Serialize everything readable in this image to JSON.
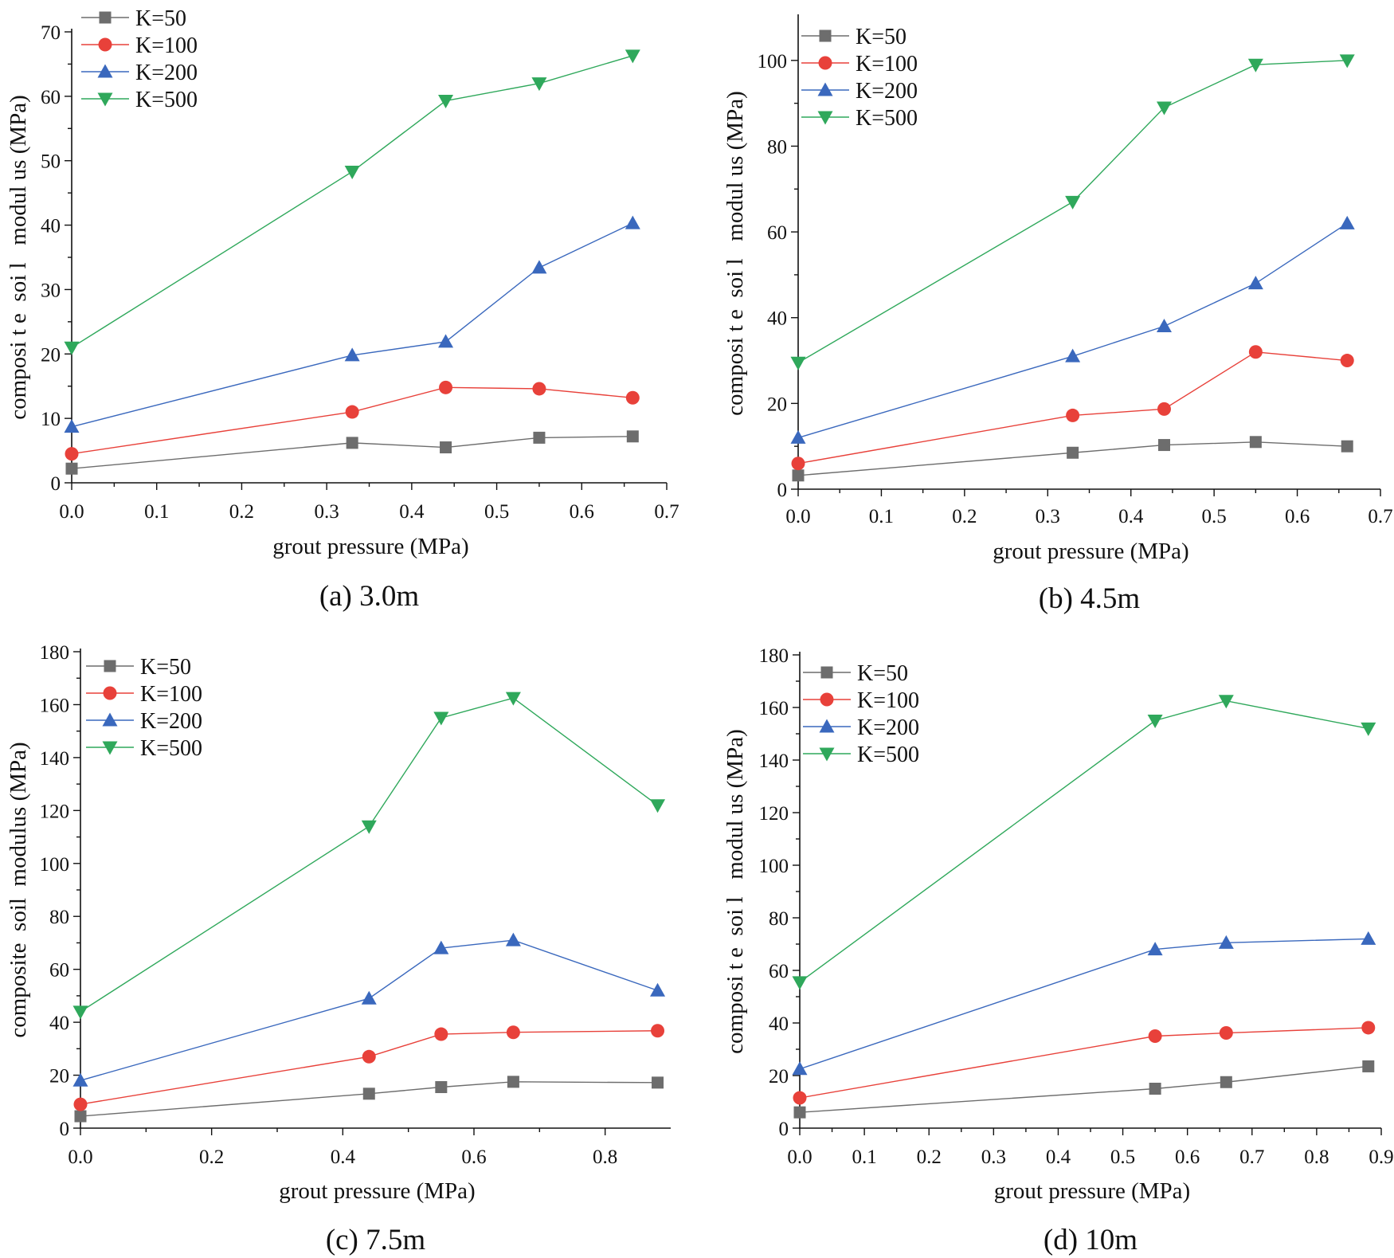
{
  "colors": {
    "K=50": "#6d6d6d",
    "K=100": "#e8413a",
    "K=200": "#3a68bd",
    "K=500": "#2fa85b",
    "axis": "#111111"
  },
  "chart_data": [
    {
      "type": "line",
      "caption": "(a) 3.0m",
      "xlabel": "grout pressure (MPa)",
      "ylabel": "composi t e  soi l   modul us (MPa)",
      "xlim": [
        0,
        0.7
      ],
      "ylim": [
        0,
        70
      ],
      "xticks": [
        0.0,
        0.1,
        0.2,
        0.3,
        0.4,
        0.5,
        0.6,
        0.7
      ],
      "yticks": [
        0,
        10,
        20,
        30,
        40,
        50,
        60,
        70
      ],
      "x_decimals": 1,
      "y_decimals": 0,
      "x": [
        0.0,
        0.33,
        0.44,
        0.55,
        0.66
      ],
      "legend_position": "top-left",
      "series": [
        {
          "name": "K=50",
          "marker": "square",
          "values": [
            2.2,
            6.2,
            5.5,
            7.0,
            7.2
          ]
        },
        {
          "name": "K=100",
          "marker": "circle",
          "values": [
            4.5,
            11.0,
            14.8,
            14.6,
            13.2
          ]
        },
        {
          "name": "K=200",
          "marker": "triangle-up",
          "values": [
            8.7,
            19.8,
            21.9,
            33.4,
            40.3
          ]
        },
        {
          "name": "K=500",
          "marker": "triangle-down",
          "values": [
            21.0,
            48.3,
            59.3,
            62.0,
            66.3
          ]
        }
      ]
    },
    {
      "type": "line",
      "caption": "(b) 4.5m",
      "xlabel": "grout pressure (MPa)",
      "ylabel": "composi t e  soi l   modul us (MPa)",
      "xlim": [
        0,
        0.7
      ],
      "ylim": [
        0,
        110
      ],
      "xticks": [
        0.0,
        0.1,
        0.2,
        0.3,
        0.4,
        0.5,
        0.6,
        0.7
      ],
      "yticks": [
        0,
        20,
        40,
        60,
        80,
        100
      ],
      "x_decimals": 1,
      "y_decimals": 0,
      "x": [
        0.0,
        0.33,
        0.44,
        0.55,
        0.66
      ],
      "legend_position": "top-left",
      "series": [
        {
          "name": "K=50",
          "marker": "square",
          "values": [
            3.2,
            8.5,
            10.3,
            11.0,
            10.0
          ]
        },
        {
          "name": "K=100",
          "marker": "circle",
          "values": [
            6.0,
            17.2,
            18.7,
            32.0,
            30.0
          ]
        },
        {
          "name": "K=200",
          "marker": "triangle-up",
          "values": [
            12.0,
            31.0,
            38.0,
            48.0,
            62.0
          ]
        },
        {
          "name": "K=500",
          "marker": "triangle-down",
          "values": [
            29.5,
            67.0,
            89.0,
            99.0,
            100.0
          ]
        }
      ]
    },
    {
      "type": "line",
      "caption": "(c) 7.5m",
      "xlabel": "grout pressure (MPa)",
      "ylabel": "composite  soil  modulus (MPa)",
      "xlim": [
        0,
        0.9
      ],
      "ylim": [
        0,
        180
      ],
      "xticks": [
        0.0,
        0.2,
        0.4,
        0.6,
        0.8
      ],
      "yticks": [
        0,
        20,
        40,
        60,
        80,
        100,
        120,
        140,
        160,
        180
      ],
      "x_decimals": 1,
      "y_decimals": 0,
      "x": [
        0.0,
        0.44,
        0.55,
        0.66,
        0.88
      ],
      "legend_position": "top-left",
      "series": [
        {
          "name": "K=50",
          "marker": "square",
          "values": [
            4.5,
            13.0,
            15.5,
            17.5,
            17.2
          ]
        },
        {
          "name": "K=100",
          "marker": "circle",
          "values": [
            9.0,
            27.0,
            35.5,
            36.2,
            36.8
          ]
        },
        {
          "name": "K=200",
          "marker": "triangle-up",
          "values": [
            18.0,
            49.0,
            68.0,
            71.0,
            52.0
          ]
        },
        {
          "name": "K=500",
          "marker": "triangle-down",
          "values": [
            44.0,
            114.0,
            155.0,
            162.5,
            122.0
          ]
        }
      ]
    },
    {
      "type": "line",
      "caption": "(d) 10m",
      "xlabel": "grout pressure (MPa)",
      "ylabel": "composi t e  soi l   modul us (MPa)",
      "xlim": [
        0,
        0.9
      ],
      "ylim": [
        0,
        180
      ],
      "xticks": [
        0.0,
        0.1,
        0.2,
        0.3,
        0.4,
        0.5,
        0.6,
        0.7,
        0.8,
        0.9
      ],
      "yticks": [
        0,
        20,
        40,
        60,
        80,
        100,
        120,
        140,
        160,
        180
      ],
      "x_decimals": 1,
      "y_decimals": 0,
      "x": [
        0.0,
        0.55,
        0.66,
        0.88
      ],
      "legend_position": "top-left",
      "series": [
        {
          "name": "K=50",
          "marker": "square",
          "values": [
            6.0,
            15.0,
            17.5,
            23.5
          ]
        },
        {
          "name": "K=100",
          "marker": "circle",
          "values": [
            11.5,
            35.0,
            36.2,
            38.2
          ]
        },
        {
          "name": "K=200",
          "marker": "triangle-up",
          "values": [
            22.5,
            68.0,
            70.5,
            72.0
          ]
        },
        {
          "name": "K=500",
          "marker": "triangle-down",
          "values": [
            55.5,
            155.0,
            162.5,
            152.0
          ]
        }
      ]
    }
  ]
}
